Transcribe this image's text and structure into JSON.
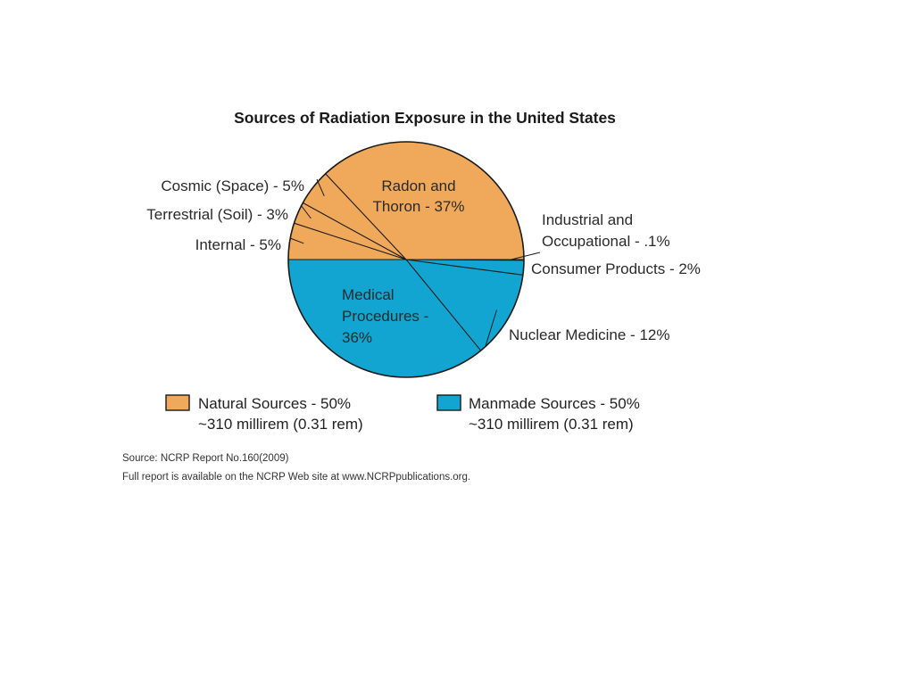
{
  "chart_data": {
    "type": "pie",
    "title": "Sources of Radiation Exposure in the United States",
    "slices": [
      {
        "label_lines": [
          "Radon and",
          "Thoron - 37%"
        ],
        "value": 37,
        "group": "natural"
      },
      {
        "label_lines": [
          "Cosmic (Space) - 5%"
        ],
        "value": 5,
        "group": "natural"
      },
      {
        "label_lines": [
          "Terrestrial (Soil) - 3%"
        ],
        "value": 3,
        "group": "natural"
      },
      {
        "label_lines": [
          "Internal - 5%"
        ],
        "value": 5,
        "group": "natural"
      },
      {
        "label_lines": [
          "Medical",
          "Procedures -",
          "36%"
        ],
        "value": 36,
        "group": "manmade"
      },
      {
        "label_lines": [
          "Nuclear Medicine - 12%"
        ],
        "value": 12,
        "group": "manmade"
      },
      {
        "label_lines": [
          "Consumer Products - 2%"
        ],
        "value": 2,
        "group": "manmade"
      },
      {
        "label_lines": [
          "Industrial and",
          "Occupational - .1%"
        ],
        "value": 0.1,
        "group": "manmade"
      }
    ],
    "legend": [
      {
        "group": "natural",
        "lines": [
          "Natural Sources - 50%",
          "~310 millirem (0.31 rem)"
        ]
      },
      {
        "group": "manmade",
        "lines": [
          "Manmade Sources - 50%",
          "~310 millirem (0.31 rem)"
        ]
      }
    ],
    "colors": {
      "natural": "#f0a95a",
      "manmade": "#12a5d2",
      "outline": "#1a1a1a"
    }
  },
  "source_note": {
    "line1": "Source: NCRP Report No.160(2009)",
    "line2": "Full report is available on the NCRP Web site at www.NCRPpublications.org."
  }
}
